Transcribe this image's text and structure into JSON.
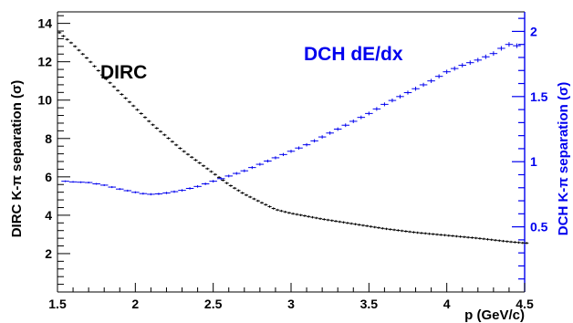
{
  "chart_data": {
    "type": "line",
    "xlabel": "p (GeV/c)",
    "ylabel_left": "DIRC K-π separation (σ)",
    "ylabel_right": "DCH K-π separation (σ)",
    "xlim": [
      1.5,
      4.5
    ],
    "ylim_left": [
      0,
      14.6
    ],
    "ylim_right": [
      0,
      2.15
    ],
    "x_ticks": [
      "1.5",
      "2",
      "2.5",
      "3",
      "3.5",
      "4",
      "4.5"
    ],
    "y_ticks_left": [
      "2",
      "4",
      "6",
      "8",
      "10",
      "12",
      "14"
    ],
    "y_ticks_right": [
      "0.5",
      "1",
      "1.5",
      "2"
    ],
    "grid": false,
    "colors": {
      "dirc": "#000000",
      "dch": "#0000ee"
    },
    "series": [
      {
        "name": "DIRC",
        "axis": "left",
        "x": [
          1.5,
          1.6,
          1.7,
          1.8,
          1.9,
          2.0,
          2.1,
          2.2,
          2.3,
          2.4,
          2.5,
          2.6,
          2.7,
          2.8,
          2.9,
          3.0,
          3.2,
          3.4,
          3.6,
          3.8,
          4.0,
          4.2,
          4.4,
          4.5
        ],
        "values": [
          13.6,
          12.9,
          12.1,
          11.2,
          10.4,
          9.6,
          8.8,
          8.1,
          7.4,
          6.8,
          6.2,
          5.6,
          5.1,
          4.7,
          4.3,
          4.1,
          3.8,
          3.55,
          3.3,
          3.1,
          2.95,
          2.8,
          2.62,
          2.55
        ]
      },
      {
        "name": "DCH dE/dx",
        "axis": "right",
        "x": [
          1.55,
          1.6,
          1.7,
          1.8,
          1.9,
          2.0,
          2.05,
          2.1,
          2.15,
          2.2,
          2.3,
          2.4,
          2.5,
          2.6,
          2.7,
          2.8,
          2.9,
          3.0,
          3.1,
          3.2,
          3.3,
          3.4,
          3.5,
          3.6,
          3.7,
          3.8,
          3.9,
          4.0,
          4.1,
          4.2,
          4.3,
          4.35,
          4.4,
          4.45
        ],
        "values": [
          0.85,
          0.845,
          0.84,
          0.82,
          0.79,
          0.765,
          0.755,
          0.75,
          0.753,
          0.76,
          0.78,
          0.81,
          0.85,
          0.89,
          0.93,
          0.98,
          1.03,
          1.08,
          1.13,
          1.19,
          1.25,
          1.31,
          1.37,
          1.44,
          1.5,
          1.56,
          1.62,
          1.69,
          1.74,
          1.78,
          1.83,
          1.87,
          1.9,
          1.89
        ]
      }
    ]
  }
}
